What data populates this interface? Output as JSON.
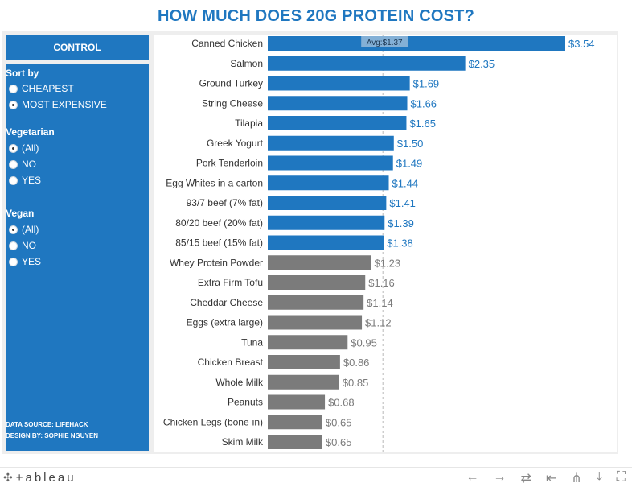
{
  "title": "HOW MUCH DOES 20G PROTEIN COST?",
  "control": {
    "header": "CONTROL",
    "sort_by": {
      "label": "Sort by",
      "options": [
        "CHEAPEST",
        "MOST EXPENSIVE"
      ],
      "selected": "MOST EXPENSIVE"
    },
    "vegetarian": {
      "label": "Vegetarian",
      "options": [
        "(All)",
        "NO",
        "YES"
      ],
      "selected": "(All)"
    },
    "vegan": {
      "label": "Vegan",
      "options": [
        "(All)",
        "NO",
        "YES"
      ],
      "selected": "(All)"
    },
    "data_source": "DATA SOURCE: LIFEHACK",
    "design_by": "DESIGN BY: SOPHIE NGUYEN"
  },
  "chart_data": {
    "type": "bar",
    "orientation": "horizontal",
    "categories": [
      "Canned Chicken",
      "Salmon",
      "Ground Turkey",
      "String Cheese",
      "Tilapia",
      "Greek Yogurt",
      "Pork Tenderloin",
      "Egg Whites in a carton",
      "93/7 beef (7% fat)",
      "80/20 beef (20% fat)",
      "85/15 beef (15% fat)",
      "Whey Protein Powder",
      "Extra Firm Tofu",
      "Cheddar Cheese",
      "Eggs (extra large)",
      "Tuna",
      "Chicken Breast",
      "Whole Milk",
      "Peanuts",
      "Chicken Legs (bone-in)",
      "Skim Milk"
    ],
    "values": [
      3.54,
      2.35,
      1.69,
      1.66,
      1.65,
      1.5,
      1.49,
      1.44,
      1.41,
      1.39,
      1.38,
      1.23,
      1.16,
      1.14,
      1.12,
      0.95,
      0.86,
      0.85,
      0.68,
      0.65,
      0.65
    ],
    "value_labels": [
      "$3.54",
      "$2.35",
      "$1.69",
      "$1.66",
      "$1.65",
      "$1.50",
      "$1.49",
      "$1.44",
      "$1.41",
      "$1.39",
      "$1.38",
      "$1.23",
      "$1.16",
      "$1.14",
      "$1.12",
      "$0.95",
      "$0.86",
      "$0.85",
      "$0.68",
      "$0.65",
      "$0.65"
    ],
    "average": 1.37,
    "average_label": "Avg:$1.37",
    "above_avg_color": "#1f77c0",
    "below_avg_color": "#7b7b7b",
    "xlim": [
      0,
      3.54
    ]
  },
  "footer": {
    "logo_text": "+ableau",
    "logo_mark": "✣",
    "icons": [
      "undo-icon",
      "redo-icon",
      "revert-icon",
      "reset-icon",
      "share-icon",
      "download-icon",
      "fullscreen-icon"
    ],
    "icon_glyphs": [
      "←",
      "→",
      "⇄",
      "⇤",
      "⋔",
      "⤓",
      "⛶"
    ]
  }
}
